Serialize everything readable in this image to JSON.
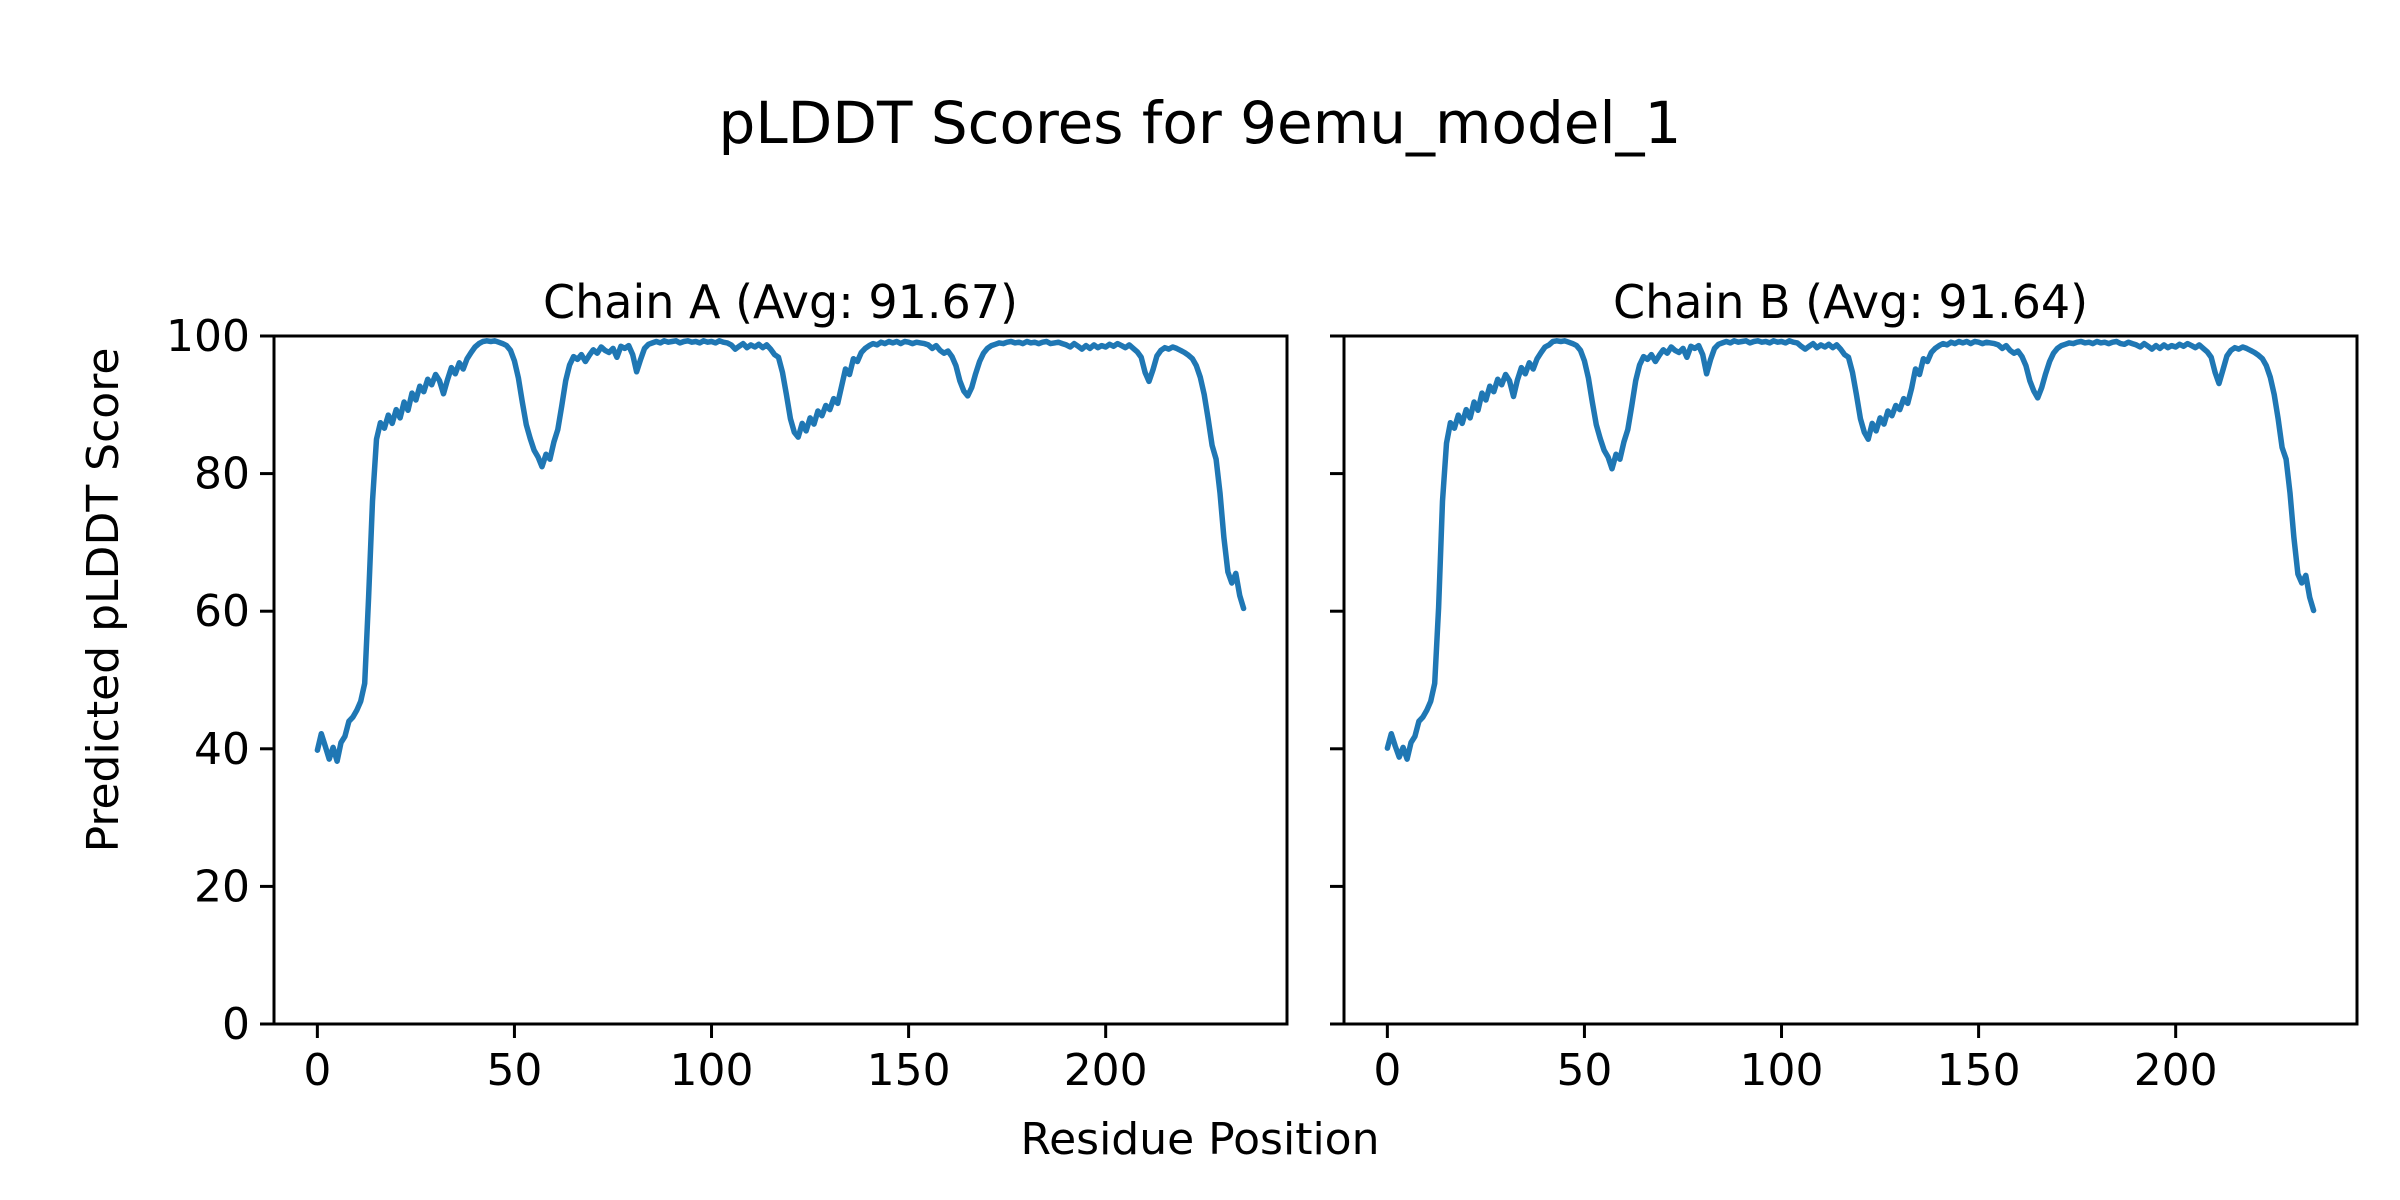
{
  "figure": {
    "suptitle": "pLDDT Scores for 9emu_model_1",
    "xlabel": "Residue Position",
    "ylabel": "Predicted pLDDT Score",
    "background_color": "#ffffff",
    "text_color": "#000000",
    "spine_color": "#000000"
  },
  "chart_data": {
    "type": "line",
    "title": "pLDDT Scores for 9emu_model_1",
    "xlabel": "Residue Position",
    "ylabel": "Predicted pLDDT Score",
    "line_color": "#1f77b4",
    "grid": false,
    "legend": "none",
    "xlim": [
      -11,
      246
    ],
    "ylim": [
      0,
      100
    ],
    "xticks": [
      0,
      50,
      100,
      150,
      200
    ],
    "yticks": [
      0,
      20,
      40,
      60,
      80,
      100
    ],
    "x_start_residue": 0,
    "subplots": [
      {
        "chain": "A",
        "title": "Chain A (Avg: 91.67)",
        "avg": 91.67,
        "values": [
          39.8,
          42.2,
          40.4,
          38.5,
          40.2,
          38.2,
          40.9,
          41.8,
          44.0,
          44.6,
          45.6,
          46.9,
          49.5,
          62.0,
          76.0,
          85.0,
          87.4,
          86.6,
          88.5,
          87.3,
          89.3,
          88.1,
          90.4,
          89.2,
          91.7,
          90.7,
          92.7,
          91.9,
          93.7,
          92.9,
          94.4,
          93.5,
          91.6,
          93.6,
          95.4,
          94.5,
          96.1,
          95.2,
          96.7,
          97.6,
          98.4,
          98.9,
          99.2,
          99.3,
          99.2,
          99.3,
          99.1,
          98.9,
          98.6,
          97.9,
          96.4,
          93.9,
          90.4,
          87.1,
          85.1,
          83.4,
          82.4,
          81.0,
          82.8,
          82.1,
          84.6,
          86.4,
          89.8,
          93.5,
          95.8,
          97.0,
          96.6,
          97.3,
          96.3,
          97.2,
          98.0,
          97.5,
          98.4,
          97.9,
          97.6,
          98.2,
          96.9,
          98.5,
          98.2,
          98.6,
          97.3,
          94.8,
          96.6,
          98.2,
          98.8,
          99.0,
          99.2,
          99.0,
          99.3,
          99.1,
          99.2,
          99.3,
          99.0,
          99.2,
          99.3,
          99.1,
          99.2,
          99.0,
          99.3,
          99.1,
          99.2,
          99.0,
          99.3,
          99.1,
          99.0,
          98.7,
          98.1,
          98.5,
          98.9,
          98.3,
          98.7,
          98.4,
          98.8,
          98.3,
          98.7,
          98.1,
          97.3,
          96.9,
          94.7,
          91.5,
          88.0,
          86.0,
          85.3,
          87.3,
          86.2,
          88.1,
          87.2,
          89.1,
          88.4,
          89.9,
          89.3,
          90.9,
          90.2,
          92.7,
          95.2,
          94.4,
          96.7,
          96.3,
          97.6,
          98.2,
          98.6,
          98.9,
          98.7,
          99.1,
          98.9,
          99.2,
          99.0,
          99.2,
          98.9,
          99.2,
          99.1,
          98.9,
          99.1,
          99.0,
          98.9,
          98.7,
          98.2,
          98.6,
          97.9,
          97.5,
          97.8,
          97.0,
          95.7,
          93.5,
          92.0,
          91.3,
          92.5,
          94.5,
          96.3,
          97.5,
          98.2,
          98.6,
          98.8,
          99.0,
          98.9,
          99.1,
          99.2,
          99.0,
          99.1,
          98.9,
          99.2,
          99.0,
          99.1,
          98.9,
          99.1,
          99.2,
          98.9,
          99.0,
          99.1,
          98.9,
          98.7,
          98.4,
          98.9,
          98.5,
          98.1,
          98.6,
          98.2,
          98.7,
          98.3,
          98.6,
          98.4,
          98.8,
          98.5,
          98.9,
          98.6,
          98.3,
          98.7,
          98.2,
          97.7,
          96.9,
          94.7,
          93.4,
          95.1,
          97.1,
          97.9,
          98.3,
          98.1,
          98.4,
          98.2,
          97.9,
          97.6,
          97.2,
          96.7,
          95.7,
          94.0,
          91.5,
          87.9,
          84.1,
          82.1,
          77.2,
          70.7,
          65.7,
          64.1,
          65.5,
          62.3,
          60.4
        ]
      },
      {
        "chain": "B",
        "title": "Chain B (Avg: 91.64)",
        "avg": 91.64,
        "values": [
          40.1,
          42.2,
          40.4,
          38.8,
          40.2,
          38.5,
          40.9,
          41.8,
          44.0,
          44.6,
          45.6,
          46.9,
          49.5,
          60.5,
          76.0,
          84.4,
          87.4,
          86.6,
          88.5,
          87.3,
          89.3,
          88.1,
          90.4,
          89.2,
          91.7,
          90.7,
          92.7,
          91.9,
          93.7,
          92.9,
          94.4,
          93.5,
          91.2,
          93.6,
          95.4,
          94.5,
          96.1,
          95.2,
          96.7,
          97.6,
          98.4,
          98.7,
          99.2,
          99.3,
          99.2,
          99.3,
          99.1,
          98.9,
          98.6,
          97.9,
          96.4,
          93.9,
          90.4,
          87.1,
          85.1,
          83.4,
          82.4,
          80.7,
          82.8,
          82.1,
          84.6,
          86.4,
          89.8,
          93.5,
          95.8,
          97.0,
          96.6,
          97.3,
          96.3,
          97.2,
          98.0,
          97.5,
          98.4,
          97.9,
          97.6,
          98.2,
          96.9,
          98.5,
          98.2,
          98.6,
          97.3,
          94.5,
          96.6,
          98.2,
          98.8,
          99.0,
          99.2,
          99.0,
          99.3,
          99.1,
          99.2,
          99.3,
          99.0,
          99.2,
          99.3,
          99.1,
          99.2,
          99.0,
          99.3,
          99.1,
          99.2,
          99.0,
          99.3,
          99.1,
          99.0,
          98.5,
          98.1,
          98.5,
          98.9,
          98.3,
          98.7,
          98.4,
          98.8,
          98.3,
          98.7,
          98.1,
          97.3,
          96.9,
          94.7,
          91.5,
          88.0,
          86.0,
          85.0,
          87.3,
          86.2,
          88.1,
          87.2,
          89.1,
          88.4,
          89.9,
          89.3,
          90.9,
          90.2,
          92.4,
          95.2,
          94.4,
          96.7,
          96.3,
          97.6,
          98.2,
          98.6,
          98.9,
          98.7,
          99.1,
          98.9,
          99.2,
          99.0,
          99.2,
          98.9,
          99.2,
          99.1,
          98.9,
          99.1,
          99.0,
          98.9,
          98.7,
          98.2,
          98.6,
          97.9,
          97.5,
          97.8,
          97.0,
          95.7,
          93.5,
          92.0,
          91.0,
          92.5,
          94.5,
          96.3,
          97.5,
          98.2,
          98.6,
          98.8,
          99.0,
          98.9,
          99.1,
          99.2,
          99.0,
          99.1,
          98.9,
          99.2,
          99.0,
          99.1,
          98.9,
          99.1,
          99.2,
          98.9,
          98.8,
          99.1,
          98.9,
          98.7,
          98.4,
          98.9,
          98.5,
          98.1,
          98.6,
          98.2,
          98.7,
          98.3,
          98.6,
          98.4,
          98.8,
          98.5,
          98.9,
          98.6,
          98.3,
          98.7,
          98.2,
          97.7,
          96.9,
          94.7,
          93.1,
          95.1,
          97.1,
          97.9,
          98.3,
          98.1,
          98.4,
          98.2,
          97.9,
          97.6,
          97.2,
          96.7,
          95.7,
          94.0,
          91.5,
          87.9,
          83.8,
          82.1,
          77.2,
          70.7,
          65.4,
          64.1,
          65.2,
          62.0,
          60.1
        ]
      }
    ]
  }
}
